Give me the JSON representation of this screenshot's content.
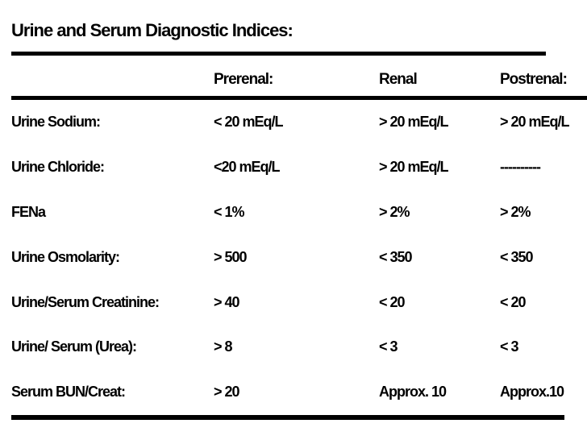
{
  "title": "Urine and Serum Diagnostic Indices:",
  "colors": {
    "text": "#000000",
    "background": "#ffffff",
    "rule": "#000000"
  },
  "table": {
    "columns": [
      "",
      "Prerenal:",
      "Renal",
      "Postrenal:"
    ],
    "rows": [
      {
        "label": "Urine Sodium:",
        "prerenal": "< 20 mEq/L",
        "renal": "> 20 mEq/L",
        "postrenal": "> 20 mEq/L"
      },
      {
        "label": "Urine Chloride:",
        "prerenal": "<20 mEq/L",
        "renal": "> 20 mEq/L",
        "postrenal": "----------"
      },
      {
        "label": "FENa",
        "prerenal": "< 1%",
        "renal": "> 2%",
        "postrenal": "> 2%"
      },
      {
        "label": "Urine Osmolarity:",
        "prerenal": "> 500",
        "renal": "< 350",
        "postrenal": "< 350"
      },
      {
        "label": "Urine/Serum Creatinine:",
        "prerenal": "> 40",
        "renal": "< 20",
        "postrenal": "< 20"
      },
      {
        "label": "Urine/ Serum (Urea):",
        "prerenal": "> 8",
        "renal": "< 3",
        "postrenal": "< 3"
      },
      {
        "label": "Serum BUN/Creat:",
        "prerenal": "> 20",
        "renal": "Approx. 10",
        "postrenal": "Approx.10"
      }
    ]
  }
}
